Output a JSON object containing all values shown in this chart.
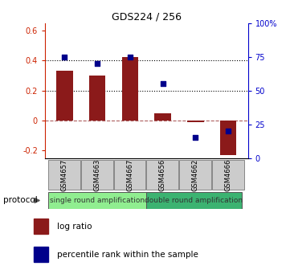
{
  "title": "GDS224 / 256",
  "categories": [
    "GSM4657",
    "GSM4663",
    "GSM4667",
    "GSM4656",
    "GSM4662",
    "GSM4666"
  ],
  "log_ratio": [
    0.33,
    0.3,
    0.42,
    0.05,
    -0.01,
    -0.23
  ],
  "percentile": [
    75,
    70,
    75,
    55,
    15,
    20
  ],
  "bar_color": "#8B1A1A",
  "dot_color": "#00008B",
  "ylim_left": [
    -0.25,
    0.65
  ],
  "ylim_right": [
    0,
    100
  ],
  "yticks_left": [
    -0.2,
    0.0,
    0.2,
    0.4,
    0.6
  ],
  "yticks_right": [
    0,
    25,
    50,
    75,
    100
  ],
  "ytick_labels_left": [
    "-0.2",
    "0",
    "0.2",
    "0.4",
    "0.6"
  ],
  "ytick_labels_right": [
    "0",
    "25",
    "50",
    "75",
    "100%"
  ],
  "hlines_dotted": [
    0.2,
    0.4
  ],
  "hline_dashed": 0.0,
  "protocol_labels": [
    "single round amplification",
    "double round amplification"
  ],
  "group1_color": "#90EE90",
  "group2_color": "#3CB371",
  "left_axis_color": "#cc2200",
  "right_axis_color": "#0000cc",
  "legend_items": [
    "log ratio",
    "percentile rank within the sample"
  ],
  "protocol_row_label": "protocol",
  "bg_color": "#ffffff"
}
